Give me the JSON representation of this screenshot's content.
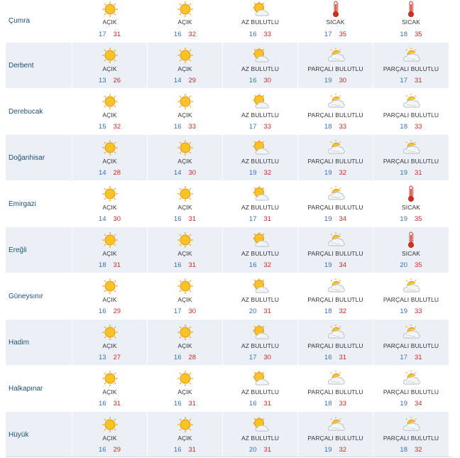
{
  "rows": [
    {
      "city": "Çumra",
      "days": [
        {
          "desc": "AÇIK",
          "icon": "sun-icon",
          "min": "17",
          "max": "31"
        },
        {
          "desc": "AÇIK",
          "icon": "sun-icon",
          "min": "16",
          "max": "32"
        },
        {
          "desc": "AZ BULUTLU",
          "icon": "sun-cloud-icon",
          "min": "16",
          "max": "33"
        },
        {
          "desc": "SICAK",
          "icon": "thermometer-icon",
          "min": "17",
          "max": "35"
        },
        {
          "desc": "SICAK",
          "icon": "thermometer-icon",
          "min": "18",
          "max": "35"
        }
      ]
    },
    {
      "city": "Derbent",
      "days": [
        {
          "desc": "AÇIK",
          "icon": "sun-icon",
          "min": "13",
          "max": "26"
        },
        {
          "desc": "AÇIK",
          "icon": "sun-icon",
          "min": "14",
          "max": "29"
        },
        {
          "desc": "AZ BULUTLU",
          "icon": "sun-cloud-icon",
          "min": "16",
          "max": "30"
        },
        {
          "desc": "PARÇALI BULUTLU",
          "icon": "partly-cloudy-icon",
          "min": "19",
          "max": "30"
        },
        {
          "desc": "PARÇALI BULUTLU",
          "icon": "partly-cloudy-icon",
          "min": "17",
          "max": "31"
        }
      ]
    },
    {
      "city": "Derebucak",
      "days": [
        {
          "desc": "AÇIK",
          "icon": "sun-icon",
          "min": "15",
          "max": "32"
        },
        {
          "desc": "AÇIK",
          "icon": "sun-icon",
          "min": "16",
          "max": "33"
        },
        {
          "desc": "AZ BULUTLU",
          "icon": "sun-cloud-icon",
          "min": "17",
          "max": "33"
        },
        {
          "desc": "PARÇALI BULUTLU",
          "icon": "partly-cloudy-icon",
          "min": "18",
          "max": "33"
        },
        {
          "desc": "PARÇALI BULUTLU",
          "icon": "partly-cloudy-icon",
          "min": "18",
          "max": "33"
        }
      ]
    },
    {
      "city": "Doğanhisar",
      "days": [
        {
          "desc": "AÇIK",
          "icon": "sun-icon",
          "min": "14",
          "max": "28"
        },
        {
          "desc": "AÇIK",
          "icon": "sun-icon",
          "min": "14",
          "max": "30"
        },
        {
          "desc": "AZ BULUTLU",
          "icon": "sun-cloud-icon",
          "min": "19",
          "max": "32"
        },
        {
          "desc": "PARÇALI BULUTLU",
          "icon": "partly-cloudy-icon",
          "min": "19",
          "max": "32"
        },
        {
          "desc": "PARÇALI BULUTLU",
          "icon": "partly-cloudy-icon",
          "min": "19",
          "max": "31"
        }
      ]
    },
    {
      "city": "Emirgazi",
      "days": [
        {
          "desc": "AÇIK",
          "icon": "sun-icon",
          "min": "14",
          "max": "30"
        },
        {
          "desc": "AÇIK",
          "icon": "sun-icon",
          "min": "16",
          "max": "31"
        },
        {
          "desc": "AZ BULUTLU",
          "icon": "sun-cloud-icon",
          "min": "17",
          "max": "31"
        },
        {
          "desc": "PARÇALI BULUTLU",
          "icon": "partly-cloudy-icon",
          "min": "19",
          "max": "34"
        },
        {
          "desc": "SICAK",
          "icon": "thermometer-icon",
          "min": "19",
          "max": "35"
        }
      ]
    },
    {
      "city": "Ereğli",
      "days": [
        {
          "desc": "AÇIK",
          "icon": "sun-icon",
          "min": "18",
          "max": "31"
        },
        {
          "desc": "AÇIK",
          "icon": "sun-icon",
          "min": "16",
          "max": "31"
        },
        {
          "desc": "AZ BULUTLU",
          "icon": "sun-cloud-icon",
          "min": "16",
          "max": "32"
        },
        {
          "desc": "PARÇALI BULUTLU",
          "icon": "partly-cloudy-icon",
          "min": "19",
          "max": "34"
        },
        {
          "desc": "SICAK",
          "icon": "thermometer-icon",
          "min": "20",
          "max": "35"
        }
      ]
    },
    {
      "city": "Güneysınır",
      "days": [
        {
          "desc": "AÇIK",
          "icon": "sun-icon",
          "min": "16",
          "max": "29"
        },
        {
          "desc": "AÇIK",
          "icon": "sun-icon",
          "min": "17",
          "max": "30"
        },
        {
          "desc": "AZ BULUTLU",
          "icon": "sun-cloud-icon",
          "min": "20",
          "max": "31"
        },
        {
          "desc": "PARÇALI BULUTLU",
          "icon": "partly-cloudy-icon",
          "min": "18",
          "max": "32"
        },
        {
          "desc": "PARÇALI BULUTLU",
          "icon": "partly-cloudy-icon",
          "min": "19",
          "max": "33"
        }
      ]
    },
    {
      "city": "Hadim",
      "days": [
        {
          "desc": "AÇIK",
          "icon": "sun-icon",
          "min": "13",
          "max": "27"
        },
        {
          "desc": "AÇIK",
          "icon": "sun-icon",
          "min": "16",
          "max": "28"
        },
        {
          "desc": "AZ BULUTLU",
          "icon": "sun-cloud-icon",
          "min": "17",
          "max": "30"
        },
        {
          "desc": "PARÇALI BULUTLU",
          "icon": "partly-cloudy-icon",
          "min": "16",
          "max": "31"
        },
        {
          "desc": "PARÇALI BULUTLU",
          "icon": "partly-cloudy-icon",
          "min": "17",
          "max": "31"
        }
      ]
    },
    {
      "city": "Halkapınar",
      "days": [
        {
          "desc": "AÇIK",
          "icon": "sun-icon",
          "min": "16",
          "max": "31"
        },
        {
          "desc": "AÇIK",
          "icon": "sun-icon",
          "min": "16",
          "max": "31"
        },
        {
          "desc": "AZ BULUTLU",
          "icon": "sun-cloud-icon",
          "min": "16",
          "max": "31"
        },
        {
          "desc": "PARÇALI BULUTLU",
          "icon": "partly-cloudy-icon",
          "min": "18",
          "max": "33"
        },
        {
          "desc": "PARÇALI BULUTLU",
          "icon": "partly-cloudy-icon",
          "min": "19",
          "max": "34"
        }
      ]
    },
    {
      "city": "Hüyük",
      "days": [
        {
          "desc": "AÇIK",
          "icon": "sun-icon",
          "min": "16",
          "max": "29"
        },
        {
          "desc": "AÇIK",
          "icon": "sun-icon",
          "min": "16",
          "max": "31"
        },
        {
          "desc": "AZ BULUTLU",
          "icon": "sun-cloud-icon",
          "min": "20",
          "max": "31"
        },
        {
          "desc": "PARÇALI BULUTLU",
          "icon": "partly-cloudy-icon",
          "min": "19",
          "max": "32"
        },
        {
          "desc": "PARÇALI BULUTLU",
          "icon": "partly-cloudy-icon",
          "min": "18",
          "max": "32"
        }
      ]
    }
  ],
  "colors": {
    "shade": "#eaf0f5",
    "city": "#1f4f7a",
    "min": "#3a6fb3",
    "max": "#cc2a2a"
  }
}
